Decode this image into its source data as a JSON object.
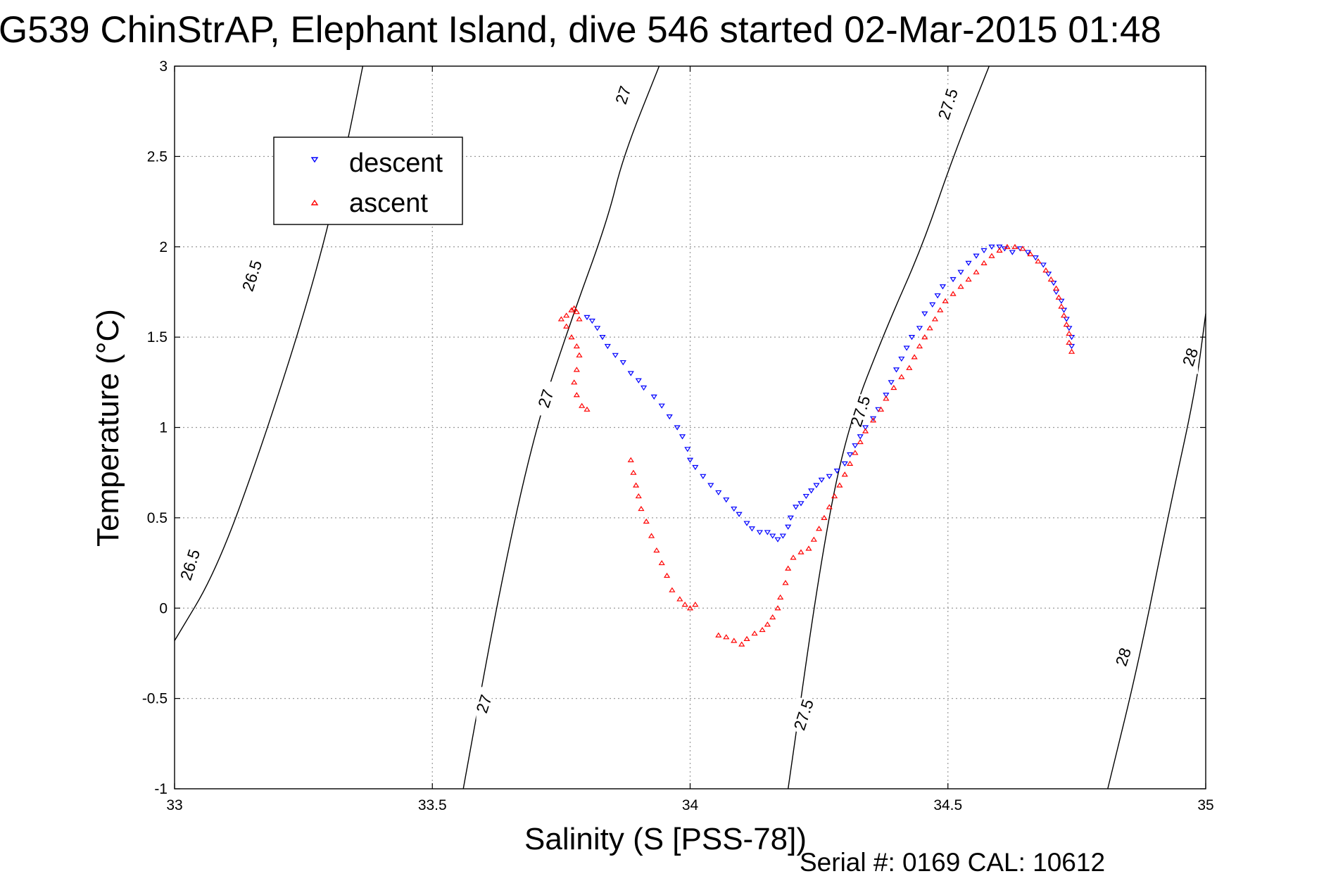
{
  "chart_data": {
    "type": "scatter",
    "title": "G539 ChinStrAP, Elephant Island, dive 546 started 02-Mar-2015 01:48",
    "xlabel": "Salinity (S [PSS-78])",
    "ylabel": "Temperature (°C)",
    "footer": "Serial #: 0169 CAL: 10612",
    "xlim": [
      33,
      35
    ],
    "ylim": [
      -1,
      3
    ],
    "x_ticks": [
      33,
      33.5,
      34,
      34.5,
      35
    ],
    "x_tick_labels": [
      "33",
      "33.5",
      "34",
      "34.5",
      "35"
    ],
    "y_ticks": [
      -1,
      -0.5,
      0,
      0.5,
      1,
      1.5,
      2,
      2.5,
      3
    ],
    "y_tick_labels": [
      "-1",
      "-0.5",
      "0",
      "0.5",
      "1",
      "1.5",
      "2",
      "2.5",
      "3"
    ],
    "grid": true,
    "legend_position": "top-left",
    "series": [
      {
        "name": "descent",
        "color": "#0000ff",
        "marker": "triangle-down",
        "points": [
          [
            34.74,
            1.45
          ],
          [
            34.74,
            1.5
          ],
          [
            34.735,
            1.55
          ],
          [
            34.73,
            1.6
          ],
          [
            34.725,
            1.65
          ],
          [
            34.72,
            1.7
          ],
          [
            34.71,
            1.75
          ],
          [
            34.705,
            1.8
          ],
          [
            34.695,
            1.85
          ],
          [
            34.685,
            1.9
          ],
          [
            34.67,
            1.94
          ],
          [
            34.655,
            1.97
          ],
          [
            34.64,
            1.99
          ],
          [
            34.625,
            1.97
          ],
          [
            34.61,
            1.99
          ],
          [
            34.6,
            2.0
          ],
          [
            34.585,
            2.0
          ],
          [
            34.57,
            1.98
          ],
          [
            34.555,
            1.95
          ],
          [
            34.54,
            1.91
          ],
          [
            34.525,
            1.86
          ],
          [
            34.51,
            1.82
          ],
          [
            34.49,
            1.78
          ],
          [
            34.48,
            1.73
          ],
          [
            34.47,
            1.68
          ],
          [
            34.455,
            1.63
          ],
          [
            34.445,
            1.55
          ],
          [
            34.43,
            1.5
          ],
          [
            34.42,
            1.44
          ],
          [
            34.41,
            1.38
          ],
          [
            34.4,
            1.32
          ],
          [
            34.39,
            1.25
          ],
          [
            34.38,
            1.18
          ],
          [
            34.365,
            1.1
          ],
          [
            34.355,
            1.05
          ],
          [
            34.34,
            1.0
          ],
          [
            34.33,
            0.95
          ],
          [
            34.32,
            0.9
          ],
          [
            34.31,
            0.85
          ],
          [
            34.3,
            0.8
          ],
          [
            34.285,
            0.76
          ],
          [
            34.27,
            0.73
          ],
          [
            34.255,
            0.71
          ],
          [
            34.245,
            0.68
          ],
          [
            34.235,
            0.65
          ],
          [
            34.225,
            0.62
          ],
          [
            34.215,
            0.58
          ],
          [
            34.205,
            0.56
          ],
          [
            34.195,
            0.5
          ],
          [
            34.19,
            0.45
          ],
          [
            34.18,
            0.4
          ],
          [
            34.17,
            0.38
          ],
          [
            34.16,
            0.4
          ],
          [
            34.15,
            0.42
          ],
          [
            34.135,
            0.42
          ],
          [
            34.12,
            0.44
          ],
          [
            34.11,
            0.47
          ],
          [
            34.095,
            0.52
          ],
          [
            34.085,
            0.55
          ],
          [
            34.07,
            0.6
          ],
          [
            34.055,
            0.64
          ],
          [
            34.04,
            0.68
          ],
          [
            34.025,
            0.73
          ],
          [
            34.01,
            0.78
          ],
          [
            34.0,
            0.82
          ],
          [
            33.995,
            0.88
          ],
          [
            33.985,
            0.95
          ],
          [
            33.975,
            1.0
          ],
          [
            33.96,
            1.06
          ],
          [
            33.945,
            1.12
          ],
          [
            33.93,
            1.17
          ],
          [
            33.91,
            1.22
          ],
          [
            33.9,
            1.26
          ],
          [
            33.885,
            1.3
          ],
          [
            33.87,
            1.36
          ],
          [
            33.855,
            1.4
          ],
          [
            33.84,
            1.45
          ],
          [
            33.83,
            1.5
          ],
          [
            33.82,
            1.55
          ],
          [
            33.81,
            1.59
          ],
          [
            33.8,
            1.61
          ]
        ]
      },
      {
        "name": "ascent",
        "color": "#ff0000",
        "marker": "triangle-up",
        "points": [
          [
            34.74,
            1.42
          ],
          [
            34.735,
            1.47
          ],
          [
            34.735,
            1.52
          ],
          [
            34.73,
            1.57
          ],
          [
            34.725,
            1.62
          ],
          [
            34.72,
            1.67
          ],
          [
            34.715,
            1.72
          ],
          [
            34.71,
            1.77
          ],
          [
            34.7,
            1.82
          ],
          [
            34.69,
            1.87
          ],
          [
            34.675,
            1.92
          ],
          [
            34.66,
            1.96
          ],
          [
            34.645,
            1.99
          ],
          [
            34.63,
            2.0
          ],
          [
            34.615,
            2.0
          ],
          [
            34.6,
            1.98
          ],
          [
            34.585,
            1.95
          ],
          [
            34.57,
            1.91
          ],
          [
            34.555,
            1.86
          ],
          [
            34.54,
            1.82
          ],
          [
            34.525,
            1.78
          ],
          [
            34.51,
            1.74
          ],
          [
            34.495,
            1.7
          ],
          [
            34.485,
            1.65
          ],
          [
            34.475,
            1.6
          ],
          [
            34.465,
            1.55
          ],
          [
            34.455,
            1.5
          ],
          [
            34.445,
            1.45
          ],
          [
            34.435,
            1.39
          ],
          [
            34.425,
            1.33
          ],
          [
            34.41,
            1.28
          ],
          [
            34.395,
            1.22
          ],
          [
            34.38,
            1.16
          ],
          [
            34.37,
            1.1
          ],
          [
            34.355,
            1.04
          ],
          [
            34.34,
            0.98
          ],
          [
            34.33,
            0.92
          ],
          [
            34.32,
            0.86
          ],
          [
            34.31,
            0.8
          ],
          [
            34.3,
            0.74
          ],
          [
            34.29,
            0.68
          ],
          [
            34.28,
            0.62
          ],
          [
            34.27,
            0.56
          ],
          [
            34.26,
            0.5
          ],
          [
            34.25,
            0.44
          ],
          [
            34.24,
            0.38
          ],
          [
            34.23,
            0.33
          ],
          [
            34.215,
            0.31
          ],
          [
            34.2,
            0.28
          ],
          [
            34.19,
            0.22
          ],
          [
            34.185,
            0.14
          ],
          [
            34.175,
            0.06
          ],
          [
            34.17,
            0.0
          ],
          [
            34.16,
            -0.05
          ],
          [
            34.15,
            -0.09
          ],
          [
            34.14,
            -0.12
          ],
          [
            34.125,
            -0.14
          ],
          [
            34.11,
            -0.17
          ],
          [
            34.1,
            -0.2
          ],
          [
            34.085,
            -0.18
          ],
          [
            34.07,
            -0.16
          ],
          [
            34.055,
            -0.15
          ],
          [
            34.01,
            0.02
          ],
          [
            34.0,
            0.0
          ],
          [
            33.99,
            0.02
          ],
          [
            33.98,
            0.05
          ],
          [
            33.965,
            0.1
          ],
          [
            33.955,
            0.18
          ],
          [
            33.945,
            0.25
          ],
          [
            33.935,
            0.32
          ],
          [
            33.925,
            0.4
          ],
          [
            33.915,
            0.48
          ],
          [
            33.905,
            0.55
          ],
          [
            33.9,
            0.62
          ],
          [
            33.895,
            0.68
          ],
          [
            33.89,
            0.75
          ],
          [
            33.885,
            0.82
          ],
          [
            33.8,
            1.1
          ],
          [
            33.79,
            1.12
          ],
          [
            33.78,
            1.18
          ],
          [
            33.775,
            1.25
          ],
          [
            33.78,
            1.32
          ],
          [
            33.785,
            1.4
          ],
          [
            33.78,
            1.45
          ],
          [
            33.77,
            1.5
          ],
          [
            33.76,
            1.56
          ],
          [
            33.75,
            1.6
          ],
          [
            33.76,
            1.62
          ],
          [
            33.77,
            1.65
          ],
          [
            33.775,
            1.66
          ],
          [
            33.78,
            1.64
          ],
          [
            33.785,
            1.6
          ]
        ]
      }
    ],
    "density_contours": [
      {
        "label": "26.5",
        "points": [
          [
            33,
            -0.18
          ],
          [
            33.08,
            0.2
          ],
          [
            33.17,
            0.9
          ],
          [
            33.27,
            1.8
          ],
          [
            33.33,
            2.5
          ],
          [
            33.365,
            3.0
          ]
        ]
      },
      {
        "label": "27",
        "points": [
          [
            33.56,
            -1.0
          ],
          [
            33.63,
            0.1
          ],
          [
            33.7,
            1.0
          ],
          [
            33.77,
            1.6
          ],
          [
            33.84,
            2.15
          ],
          [
            33.87,
            2.5
          ],
          [
            33.94,
            3.0
          ]
        ]
      },
      {
        "label": "27.5",
        "points": [
          [
            34.19,
            -1.0
          ],
          [
            34.255,
            0.3
          ],
          [
            34.305,
            1.0
          ],
          [
            34.38,
            1.55
          ],
          [
            34.45,
            2.0
          ],
          [
            34.51,
            2.5
          ],
          [
            34.58,
            3.0
          ]
        ]
      },
      {
        "label": "28",
        "points": [
          [
            34.81,
            -1.0
          ],
          [
            34.87,
            -0.3
          ],
          [
            34.93,
            0.55
          ],
          [
            34.98,
            1.2
          ],
          [
            35.0,
            1.63
          ]
        ]
      }
    ],
    "contour_labels": [
      {
        "text": "26.5",
        "x": 33.15,
        "y": 1.84
      },
      {
        "text": "26.5",
        "x": 33.03,
        "y": 0.24
      },
      {
        "text": "27",
        "x": 33.87,
        "y": 2.84
      },
      {
        "text": "27",
        "x": 33.72,
        "y": 1.16
      },
      {
        "text": "27",
        "x": 33.6,
        "y": -0.53
      },
      {
        "text": "27.5",
        "x": 34.5,
        "y": 2.79
      },
      {
        "text": "27.5",
        "x": 34.33,
        "y": 1.09
      },
      {
        "text": "27.5",
        "x": 34.22,
        "y": -0.59
      },
      {
        "text": "28",
        "x": 34.97,
        "y": 1.39
      },
      {
        "text": "28",
        "x": 34.84,
        "y": -0.27
      }
    ]
  }
}
